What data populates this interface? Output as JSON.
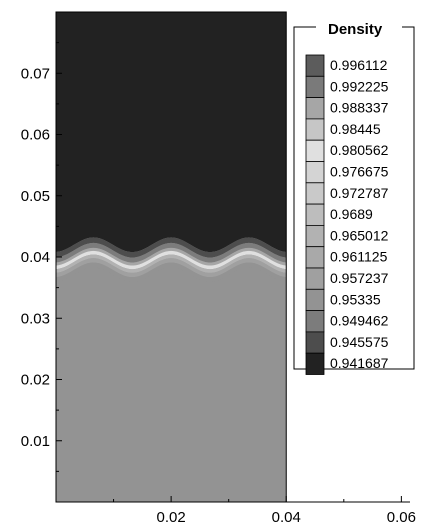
{
  "chart_data": {
    "type": "heatmap",
    "title": "",
    "xlabel": "",
    "ylabel": "",
    "xlim": [
      0,
      0.0615
    ],
    "ylim": [
      0,
      0.08
    ],
    "x_ticks": [
      {
        "value": 0.02,
        "label": "0.02"
      },
      {
        "value": 0.04,
        "label": "0.04"
      },
      {
        "value": 0.06,
        "label": "0.06"
      }
    ],
    "y_ticks": [
      {
        "value": 0.01,
        "label": "0.01"
      },
      {
        "value": 0.02,
        "label": "0.02"
      },
      {
        "value": 0.03,
        "label": "0.03"
      },
      {
        "value": 0.04,
        "label": "0.04"
      },
      {
        "value": 0.05,
        "label": "0.05"
      },
      {
        "value": 0.06,
        "label": "0.06"
      },
      {
        "value": 0.07,
        "label": "0.07"
      }
    ],
    "domain_x": [
      0,
      0.04
    ],
    "domain_y": [
      0,
      0.08
    ],
    "interface": {
      "mean_y": 0.0395,
      "amplitude": 0.0012,
      "wavelength": 0.0135,
      "phase_x": 0.0065
    },
    "regions": [
      {
        "name": "upper",
        "density": 0.941687
      },
      {
        "name": "lower",
        "density": 0.95335
      }
    ],
    "legend": {
      "title": "Density",
      "position": "top-right",
      "levels": [
        {
          "value": "0.996112",
          "color": "#5c5c5c"
        },
        {
          "value": "0.992225",
          "color": "#7a7a7a"
        },
        {
          "value": "0.988337",
          "color": "#a6a6a6"
        },
        {
          "value": "0.98445",
          "color": "#c6c6c6"
        },
        {
          "value": "0.980562",
          "color": "#e0e0e0"
        },
        {
          "value": "0.976675",
          "color": "#d4d4d4"
        },
        {
          "value": "0.972787",
          "color": "#c9c9c9"
        },
        {
          "value": "0.9689",
          "color": "#bdbdbd"
        },
        {
          "value": "0.965012",
          "color": "#b2b2b2"
        },
        {
          "value": "0.961125",
          "color": "#a9a9a9"
        },
        {
          "value": "0.957237",
          "color": "#a0a0a0"
        },
        {
          "value": "0.95335",
          "color": "#939393"
        },
        {
          "value": "0.949462",
          "color": "#7c7c7c"
        },
        {
          "value": "0.945575",
          "color": "#4d4d4d"
        },
        {
          "value": "0.941687",
          "color": "#222222"
        }
      ]
    }
  }
}
